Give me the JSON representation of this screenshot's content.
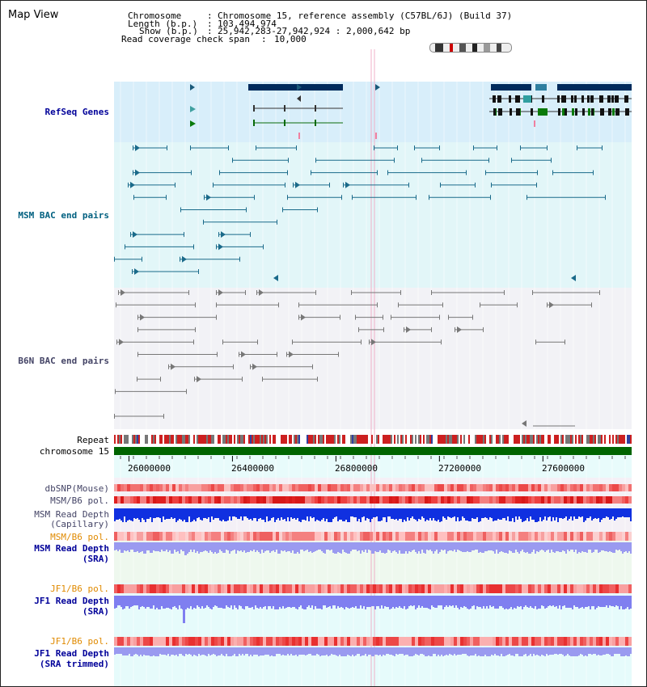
{
  "view_title": "Map View",
  "header": {
    "chromosome_label": "Chromosome",
    "chromosome_value": "Chromosome 15, reference assembly (C57BL/6J) (Build 37)",
    "length_label": "Length (b.p.)",
    "length_value": "103,494,974",
    "show_label": "Show (b.p.)",
    "show_value": "25,942,283-27,942,924 : 2,000,642 bp",
    "coverage_label": "Read coverage check span",
    "coverage_value": "10,000",
    "sep": ":"
  },
  "tracks": {
    "refseq": "RefSeq Genes",
    "msm_bac": "MSM BAC end pairs",
    "b6n_bac": "B6N BAC end pairs",
    "repeat": "Repeat",
    "chromosome": "chromosome 15",
    "dbsnp": "dbSNP(Mouse)",
    "msm_b6_pol": "MSM/B6 pol.",
    "msm_depth_cap_1": "MSM Read Depth",
    "msm_depth_cap_2": "(Capillary)",
    "msm_b6_pol_sra": "MSM/B6 pol.",
    "msm_depth_sra_1": "MSM Read Depth",
    "msm_depth_sra_2": "(SRA)",
    "jf1_b6_pol": "JF1/B6 pol.",
    "jf1_depth_1": "JF1 Read Depth",
    "jf1_depth_2": "(SRA)",
    "jf1_b6_pol_trim": "JF1/B6 pol.",
    "jf1_trim_1": "JF1 Read Depth",
    "jf1_trim_2": "(SRA trimmed)"
  },
  "axis": {
    "ticks": [
      "26000000",
      "26400000",
      "26800000",
      "27200000",
      "27600000"
    ],
    "tick_values": [
      26000000,
      26400000,
      26800000,
      27200000,
      27600000
    ],
    "range": [
      25942283,
      27942924
    ]
  },
  "colors": {
    "refseq_bg": "#d8eefa",
    "msm_bg": "#e2f6f8",
    "b6n_bg": "#f2f2f6",
    "gene_dark": "#002b5c",
    "msm_feature": "#1a6a8a",
    "b6n_feature": "#777777",
    "chromosome": "#006400",
    "label_blue": "#000099",
    "label_teal": "#006080",
    "label_gray": "#444466",
    "label_orange": "#e08a00"
  }
}
